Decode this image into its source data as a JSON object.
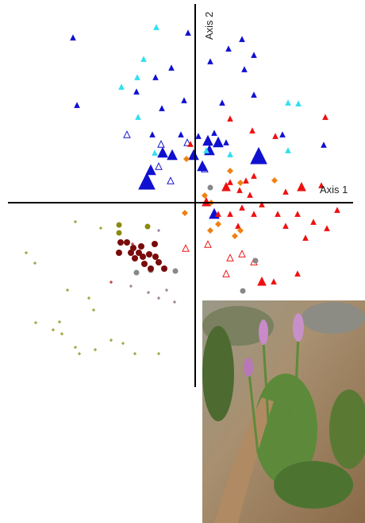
{
  "chart_data": {
    "type": "scatter",
    "x_label": "Axis 1",
    "y_label": "Axis 2",
    "xlim": [
      -246,
      214
    ],
    "ylim": [
      -403,
      255
    ],
    "series": [
      {
        "color": "#1010d0",
        "marker": "triangle",
        "size": 3,
        "x": [
          -154,
          -9,
          59,
          42,
          74,
          19,
          -50,
          -30,
          -149,
          -74,
          -42,
          -14,
          34,
          74,
          110,
          162,
          62,
          -54,
          -18,
          4,
          24,
          39
        ],
        "y": [
          207,
          213,
          205,
          193,
          185,
          177,
          157,
          169,
          122,
          139,
          118,
          128,
          125,
          135,
          85,
          72,
          167,
          85,
          85,
          83,
          87,
          75
        ]
      },
      {
        "color": "#1010d0",
        "marker": "triangle",
        "size": 6,
        "x": [
          -41,
          -29,
          -2,
          16,
          29,
          18,
          9,
          -56,
          24
        ],
        "y": [
          62,
          59,
          59,
          77,
          75,
          65,
          45,
          40,
          -15
        ]
      },
      {
        "color": "#1010d0",
        "marker": "triangle",
        "size": 10,
        "x": [
          80,
          -61
        ],
        "y": [
          57,
          25
        ]
      },
      {
        "color": "#1010d0",
        "marker": "open-triangle",
        "size": 4,
        "x": [
          -86,
          -46,
          -31,
          -10,
          12,
          -43
        ],
        "y": [
          85,
          45,
          27,
          75,
          42,
          73
        ]
      },
      {
        "color": "#30e0f0",
        "marker": "triangle",
        "size": 3,
        "x": [
          -49,
          -65,
          -73,
          -93,
          -72,
          117,
          130,
          117,
          -51,
          14,
          44
        ],
        "y": [
          220,
          180,
          157,
          145,
          107,
          125,
          124,
          65,
          62,
          65,
          60
        ]
      },
      {
        "color": "#ee1010",
        "marker": "triangle",
        "size": 3,
        "x": [
          -6,
          44,
          72,
          101,
          164,
          44,
          56,
          64,
          69,
          84,
          114,
          159,
          29,
          44,
          54,
          59,
          74,
          104,
          114,
          129,
          149,
          166,
          179,
          139,
          99,
          129,
          74
        ],
        "y": [
          73,
          105,
          90,
          83,
          107,
          25,
          15,
          27,
          9,
          -3,
          13,
          21,
          -15,
          -15,
          -30,
          -7,
          -15,
          -15,
          -30,
          -15,
          -25,
          -33,
          -10,
          -45,
          -100,
          -90,
          33
        ]
      },
      {
        "color": "#ee1010",
        "marker": "triangle",
        "size": 5,
        "x": [
          39,
          134,
          14,
          84
        ],
        "y": [
          19,
          19,
          0,
          -100
        ]
      },
      {
        "color": "#ee1010",
        "marker": "open-triangle",
        "size": 4,
        "x": [
          -12,
          16,
          44,
          74,
          39,
          59
        ],
        "y": [
          -58,
          -53,
          -70,
          -75,
          -90,
          -65
        ]
      },
      {
        "color": "#f08010",
        "marker": "diamond",
        "size": 4,
        "x": [
          -11,
          44,
          57,
          100,
          20,
          -13,
          19,
          57,
          50,
          29,
          12
        ],
        "y": [
          55,
          40,
          25,
          28,
          0,
          -13,
          -35,
          -35,
          -42,
          -27,
          9
        ]
      },
      {
        "color": "#888888",
        "marker": "circle",
        "size": 3.5,
        "x": [
          19,
          76,
          60,
          -74,
          -25,
          -56
        ],
        "y": [
          19,
          -73,
          -111,
          -88,
          -86,
          -85
        ]
      },
      {
        "color": "#8a8a10",
        "marker": "circle",
        "size": 3.5,
        "x": [
          -96,
          -96,
          -60
        ],
        "y": [
          -28,
          -38,
          -30
        ]
      },
      {
        "color": "#7a0a0a",
        "marker": "circle",
        "size": 4,
        "x": [
          -94,
          -86,
          -78,
          -71,
          -66,
          -58,
          -51,
          -68,
          -46,
          -39,
          -56,
          -64,
          -81,
          -96,
          -50,
          -76
        ],
        "y": [
          -50,
          -50,
          -57,
          -63,
          -68,
          -65,
          -52,
          -55,
          -75,
          -83,
          -83,
          -77,
          -63,
          -63,
          -68,
          -70
        ]
      },
      {
        "color": "#8a8a10",
        "marker": "plus",
        "size": 2,
        "x": [
          -151,
          -119,
          -213,
          -202,
          -161,
          -134,
          -128,
          -201,
          -171,
          -179,
          -151,
          -126,
          -106,
          -76,
          -91,
          -46,
          -168,
          -146
        ],
        "y": [
          -24,
          -32,
          -63,
          -76,
          -110,
          -120,
          -135,
          -151,
          -150,
          -160,
          -182,
          -185,
          -173,
          -190,
          -177,
          -190,
          -165,
          -190
        ]
      },
      {
        "color": "#806080",
        "marker": "plus",
        "size": 2,
        "x": [
          -46,
          -59,
          -36,
          -26,
          -46,
          -81
        ],
        "y": [
          -35,
          -113,
          -110,
          -125,
          -120,
          -105
        ]
      },
      {
        "color": "#a01010",
        "marker": "plus",
        "size": 2,
        "x": [
          -106,
          -79
        ],
        "y": [
          -100,
          -52
        ]
      }
    ]
  }
}
